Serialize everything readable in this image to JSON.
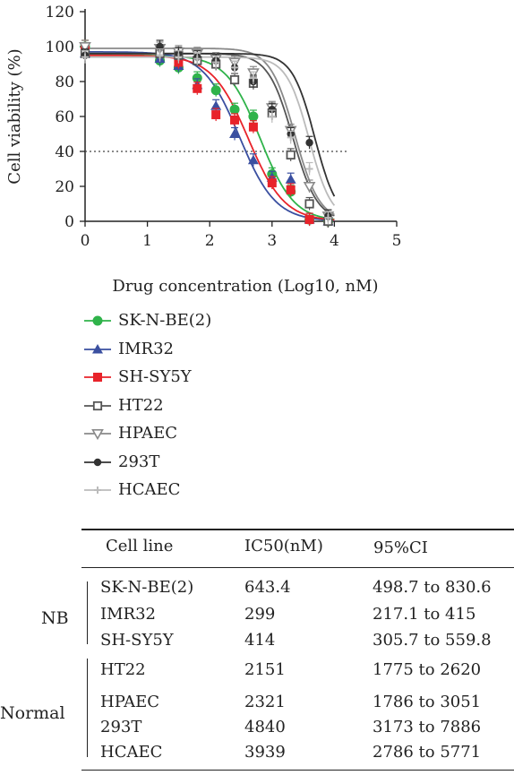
{
  "chart_data": {
    "type": "line",
    "title": "",
    "xlabel": "Drug concentration (Log10, nM)",
    "ylabel": "Cell viability (%)",
    "xlim": [
      0,
      5
    ],
    "ylim": [
      0,
      120
    ],
    "xticks": [
      "0",
      "1",
      "2",
      "3",
      "4",
      "5"
    ],
    "yticks": [
      "0",
      "20",
      "40",
      "60",
      "80",
      "100",
      "120"
    ],
    "reference_line": {
      "y": 40,
      "style": "dotted"
    },
    "legend_position": "below-plot",
    "series": [
      {
        "name": "SK-N-BE(2)",
        "color": "#2fb34a",
        "marker": "filled-circle",
        "x": [
          0,
          1.2,
          1.5,
          1.8,
          2.1,
          2.4,
          2.7,
          3.0,
          3.3,
          3.6,
          3.9
        ],
        "y": [
          100,
          92,
          88,
          82,
          75,
          64,
          60,
          27,
          17,
          1,
          0
        ],
        "fit": {
          "ic50_log": 2.808,
          "top": 95,
          "bottom": 0,
          "hill": 1.6
        }
      },
      {
        "name": "IMR32",
        "color": "#3a4fa0",
        "marker": "filled-triangle",
        "x": [
          0,
          1.2,
          1.5,
          1.8,
          2.1,
          2.4,
          2.7,
          3.0,
          3.3,
          3.6,
          3.9
        ],
        "y": [
          96,
          93,
          89,
          78,
          66,
          50,
          35,
          25,
          24,
          1,
          0
        ],
        "fit": {
          "ic50_log": 2.476,
          "top": 97,
          "bottom": 0,
          "hill": 1.5
        }
      },
      {
        "name": "SH-SY5Y",
        "color": "#e8232a",
        "marker": "filled-square",
        "x": [
          0,
          1.2,
          1.5,
          1.8,
          2.1,
          2.4,
          2.7,
          3.0,
          3.3,
          3.6,
          3.9
        ],
        "y": [
          100,
          96,
          91,
          76,
          61,
          58,
          54,
          22,
          18,
          1,
          0
        ],
        "fit": {
          "ic50_log": 2.617,
          "top": 95,
          "bottom": 0,
          "hill": 1.5
        }
      },
      {
        "name": "HT22",
        "color": "#555555",
        "marker": "open-square",
        "x": [
          0,
          1.2,
          1.5,
          1.8,
          2.1,
          2.4,
          2.7,
          3.0,
          3.3,
          3.6,
          3.9
        ],
        "y": [
          96,
          96,
          95,
          92,
          90,
          81,
          79,
          62,
          38,
          10,
          0
        ],
        "fit": {
          "ic50_log": 3.333,
          "top": 96,
          "bottom": 0,
          "hill": 2.2
        }
      },
      {
        "name": "HPAEC",
        "color": "#8a8a8a",
        "marker": "open-triangle-down",
        "x": [
          0,
          1.2,
          1.5,
          1.8,
          2.1,
          2.4,
          2.7,
          3.0,
          3.3,
          3.6,
          3.9
        ],
        "y": [
          100,
          99,
          97,
          96,
          93,
          91,
          85,
          65,
          52,
          20,
          3
        ],
        "fit": {
          "ic50_log": 3.366,
          "top": 99,
          "bottom": 0,
          "hill": 2.2
        }
      },
      {
        "name": "293T",
        "color": "#333333",
        "marker": "filled-circle-small",
        "x": [
          0,
          1.2,
          1.5,
          1.8,
          2.1,
          2.4,
          2.7,
          3.0,
          3.3,
          3.6,
          3.9
        ],
        "y": [
          95,
          100,
          96,
          94,
          92,
          88,
          80,
          64,
          50,
          45,
          3
        ],
        "fit": {
          "ic50_log": 3.685,
          "top": 96,
          "bottom": 0,
          "hill": 2.4
        }
      },
      {
        "name": "HCAEC",
        "color": "#bbbbbb",
        "marker": "plus",
        "x": [
          0,
          1.2,
          1.5,
          1.8,
          2.1,
          2.4,
          2.7,
          3.0,
          3.3,
          3.6,
          3.9
        ],
        "y": [
          94,
          95,
          94,
          93,
          91,
          88,
          82,
          60,
          48,
          30,
          2
        ],
        "fit": {
          "ic50_log": 3.595,
          "top": 94,
          "bottom": 0,
          "hill": 2.4
        }
      }
    ]
  },
  "table": {
    "headers": [
      "Cell line",
      "IC50(nM)",
      "95%CI"
    ],
    "groups": [
      {
        "name": "NB",
        "rows": [
          [
            "SK-N-BE(2)",
            "643.4",
            "498.7 to 830.6"
          ],
          [
            "IMR32",
            "299",
            "217.1 to 415"
          ],
          [
            "SH-SY5Y",
            "414",
            "305.7 to 559.8"
          ]
        ]
      },
      {
        "name": "Normal",
        "rows": [
          [
            "HT22",
            "2151",
            "1775 to 2620"
          ],
          [
            "HPAEC",
            "2321",
            "1786 to 3051"
          ],
          [
            "293T",
            "4840",
            "3173 to 7886"
          ],
          [
            "HCAEC",
            "3939",
            "2786 to 5771"
          ]
        ]
      }
    ]
  }
}
